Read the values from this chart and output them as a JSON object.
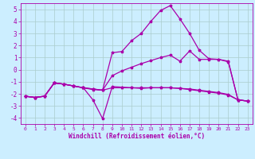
{
  "xlabel": "Windchill (Refroidissement éolien,°C)",
  "bg_color": "#cceeff",
  "line_color": "#aa00aa",
  "grid_color": "#aacccc",
  "xlim": [
    -0.5,
    23.5
  ],
  "ylim": [
    -4.5,
    5.5
  ],
  "xticks": [
    0,
    1,
    2,
    3,
    4,
    5,
    6,
    7,
    8,
    9,
    10,
    11,
    12,
    13,
    14,
    15,
    16,
    17,
    18,
    19,
    20,
    21,
    22,
    23
  ],
  "yticks": [
    -4,
    -3,
    -2,
    -1,
    0,
    1,
    2,
    3,
    4,
    5
  ],
  "line_high": [
    -2.2,
    -2.3,
    -2.2,
    -1.1,
    -1.2,
    -1.35,
    -1.5,
    -1.65,
    -1.7,
    1.4,
    1.5,
    2.4,
    3.0,
    4.0,
    4.9,
    5.3,
    4.2,
    3.0,
    1.6,
    0.9,
    0.85,
    0.7,
    -2.5,
    -2.6
  ],
  "line_dip": [
    -2.2,
    -2.3,
    -2.2,
    -1.1,
    -1.2,
    -1.35,
    -1.5,
    -2.5,
    -4.05,
    -1.4,
    -1.45,
    -1.5,
    -1.5,
    -1.5,
    -1.5,
    -1.5,
    -1.55,
    -1.6,
    -1.7,
    -1.8,
    -1.9,
    -2.05,
    -2.5,
    -2.6
  ],
  "line_mid": [
    -2.2,
    -2.3,
    -2.2,
    -1.1,
    -1.2,
    -1.35,
    -1.5,
    -1.6,
    -1.7,
    -0.5,
    -0.1,
    0.2,
    0.5,
    0.75,
    1.0,
    1.2,
    0.7,
    1.55,
    0.85,
    0.85,
    0.85,
    0.65,
    -2.5,
    -2.6
  ],
  "line_flat": [
    -2.2,
    -2.3,
    -2.2,
    -1.1,
    -1.2,
    -1.35,
    -1.5,
    -1.6,
    -1.7,
    -1.5,
    -1.5,
    -1.5,
    -1.55,
    -1.5,
    -1.5,
    -1.5,
    -1.55,
    -1.65,
    -1.75,
    -1.85,
    -1.95,
    -2.1,
    -2.5,
    -2.6
  ]
}
